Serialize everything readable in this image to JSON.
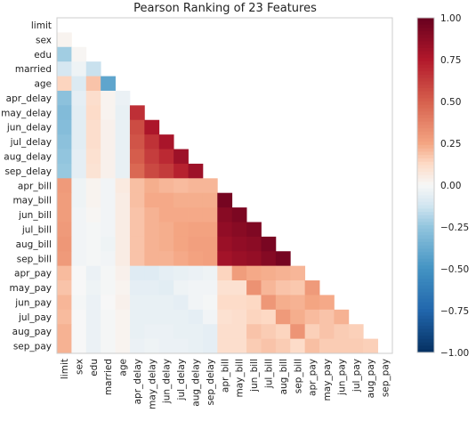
{
  "chart_data": {
    "type": "heatmap",
    "title": "Pearson Ranking of 23 Features",
    "features": [
      "limit",
      "sex",
      "edu",
      "married",
      "age",
      "apr_delay",
      "may_delay",
      "jun_delay",
      "jul_delay",
      "aug_delay",
      "sep_delay",
      "apr_bill",
      "may_bill",
      "jun_bill",
      "jul_bill",
      "aug_bill",
      "sep_bill",
      "apr_pay",
      "may_pay",
      "jun_pay",
      "jul_pay",
      "aug_pay",
      "sep_pay"
    ],
    "matrix_lower": [
      [],
      [
        0.02
      ],
      [
        -0.22,
        0.01
      ],
      [
        -0.11,
        -0.03,
        -0.14
      ],
      [
        0.14,
        -0.09,
        0.18,
        -0.41
      ],
      [
        -0.27,
        -0.06,
        0.11,
        0.02,
        -0.04
      ],
      [
        -0.3,
        -0.07,
        0.12,
        0.02,
        -0.05,
        0.67
      ],
      [
        -0.29,
        -0.07,
        0.11,
        0.03,
        -0.05,
        0.57,
        0.77
      ],
      [
        -0.27,
        -0.07,
        0.11,
        0.03,
        -0.05,
        0.54,
        0.66,
        0.78
      ],
      [
        -0.25,
        -0.06,
        0.1,
        0.03,
        -0.05,
        0.51,
        0.62,
        0.69,
        0.82
      ],
      [
        -0.24,
        -0.06,
        0.09,
        0.03,
        -0.05,
        0.47,
        0.58,
        0.63,
        0.72,
        0.82
      ],
      [
        0.29,
        -0.03,
        0.02,
        -0.02,
        0.06,
        0.19,
        0.23,
        0.21,
        0.2,
        0.21,
        0.21
      ],
      [
        0.28,
        -0.03,
        0.02,
        -0.02,
        0.05,
        0.19,
        0.24,
        0.24,
        0.23,
        0.23,
        0.23,
        0.95
      ],
      [
        0.28,
        -0.02,
        0.01,
        -0.02,
        0.05,
        0.18,
        0.22,
        0.24,
        0.24,
        0.24,
        0.24,
        0.89,
        0.93
      ],
      [
        0.29,
        -0.02,
        -0.01,
        -0.02,
        0.05,
        0.18,
        0.22,
        0.23,
        0.25,
        0.26,
        0.26,
        0.86,
        0.89,
        0.92
      ],
      [
        0.3,
        -0.02,
        -0.01,
        -0.03,
        0.05,
        0.18,
        0.22,
        0.23,
        0.25,
        0.27,
        0.27,
        0.83,
        0.86,
        0.88,
        0.94
      ],
      [
        0.29,
        -0.02,
        -0.01,
        -0.02,
        0.05,
        0.18,
        0.22,
        0.22,
        0.24,
        0.26,
        0.27,
        0.8,
        0.83,
        0.85,
        0.9,
        0.95
      ],
      [
        0.2,
        -0.0,
        -0.04,
        -0.01,
        0.03,
        -0.08,
        -0.08,
        -0.06,
        -0.05,
        -0.04,
        -0.03,
        0.14,
        0.28,
        0.24,
        0.23,
        0.22,
        0.21
      ],
      [
        0.18,
        -0.0,
        -0.03,
        -0.01,
        0.02,
        -0.06,
        -0.06,
        -0.07,
        -0.03,
        -0.02,
        -0.02,
        0.1,
        0.1,
        0.32,
        0.21,
        0.18,
        0.17,
        0.29
      ],
      [
        0.21,
        -0.01,
        -0.04,
        -0.0,
        0.03,
        -0.05,
        -0.05,
        -0.05,
        -0.06,
        -0.02,
        -0.01,
        0.12,
        0.12,
        0.13,
        0.3,
        0.23,
        0.22,
        0.25,
        0.24
      ],
      [
        0.2,
        -0.0,
        -0.04,
        -0.01,
        0.02,
        -0.05,
        -0.05,
        -0.05,
        -0.05,
        -0.06,
        -0.02,
        0.1,
        0.11,
        0.14,
        0.13,
        0.29,
        0.23,
        0.2,
        0.18,
        0.22
      ],
      [
        0.22,
        -0.0,
        -0.04,
        -0.01,
        0.02,
        -0.05,
        -0.04,
        -0.04,
        -0.05,
        -0.05,
        -0.06,
        0.11,
        0.11,
        0.18,
        0.16,
        0.14,
        0.31,
        0.15,
        0.18,
        0.16,
        0.15
      ],
      [
        0.22,
        -0.0,
        -0.04,
        -0.01,
        0.02,
        -0.04,
        -0.03,
        -0.04,
        -0.04,
        -0.05,
        -0.06,
        0.11,
        0.11,
        0.16,
        0.18,
        0.16,
        0.12,
        0.19,
        0.16,
        0.16,
        0.16,
        0.15
      ]
    ],
    "colorbar": {
      "ticks": [
        "1.00",
        "0.75",
        "0.50",
        "0.25",
        "0.00",
        "−0.25",
        "−0.50",
        "−0.75",
        "−1.00"
      ],
      "range": [
        -1.0,
        1.0
      ],
      "colormap": "RdBu_r"
    }
  }
}
